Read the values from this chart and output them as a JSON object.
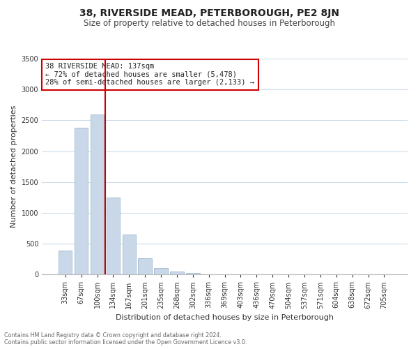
{
  "title": "38, RIVERSIDE MEAD, PETERBOROUGH, PE2 8JN",
  "subtitle": "Size of property relative to detached houses in Peterborough",
  "xlabel": "Distribution of detached houses by size in Peterborough",
  "ylabel": "Number of detached properties",
  "footnote1": "Contains HM Land Registry data © Crown copyright and database right 2024.",
  "footnote2": "Contains public sector information licensed under the Open Government Licence v3.0.",
  "bar_labels": [
    "33sqm",
    "67sqm",
    "100sqm",
    "134sqm",
    "167sqm",
    "201sqm",
    "235sqm",
    "268sqm",
    "302sqm",
    "336sqm",
    "369sqm",
    "403sqm",
    "436sqm",
    "470sqm",
    "504sqm",
    "537sqm",
    "571sqm",
    "604sqm",
    "638sqm",
    "672sqm",
    "705sqm"
  ],
  "bar_values": [
    390,
    2380,
    2600,
    1250,
    650,
    260,
    110,
    50,
    30,
    0,
    0,
    0,
    0,
    0,
    0,
    0,
    0,
    0,
    0,
    0,
    0
  ],
  "bar_color": "#c8d8e8",
  "bar_edge_color": "#a0b8cc",
  "vline_color": "#cc0000",
  "vline_position": 2.5,
  "ylim": [
    0,
    3500
  ],
  "yticks": [
    0,
    500,
    1000,
    1500,
    2000,
    2500,
    3000,
    3500
  ],
  "annotation_title": "38 RIVERSIDE MEAD: 137sqm",
  "annotation_line1": "← 72% of detached houses are smaller (5,478)",
  "annotation_line2": "28% of semi-detached houses are larger (2,133) →",
  "bg_color": "#ffffff",
  "grid_color": "#cddcec",
  "title_fontsize": 10,
  "subtitle_fontsize": 8.5,
  "annotation_fontsize": 7.5,
  "ylabel_fontsize": 8,
  "xlabel_fontsize": 8,
  "tick_fontsize": 7,
  "footnote_fontsize": 5.8
}
